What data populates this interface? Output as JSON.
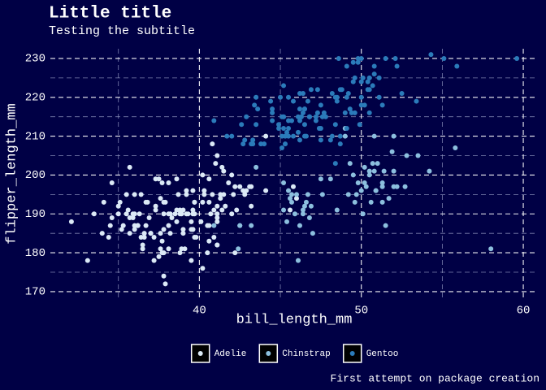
{
  "chart_data": {
    "type": "scatter",
    "title": "Little title",
    "subtitle": "Testing the subtitle",
    "caption": "First attempt on package creation",
    "x_label": "bill_length_mm",
    "y_label": "flipper_length_mm",
    "xlim": [
      30.8,
      60.8
    ],
    "ylim": [
      168.1,
      232.5
    ],
    "xticks": [
      40,
      50,
      60
    ],
    "yticks": [
      170,
      180,
      190,
      200,
      210,
      220,
      230
    ],
    "x_minor_ticks": [
      35,
      45,
      55
    ],
    "y_minor_ticks": [
      175,
      185,
      195,
      205,
      215,
      225
    ],
    "grid": true,
    "legend": "bottom",
    "series": [
      {
        "name": "Adelie",
        "color": "#dbe9f6",
        "x": [
          39.1,
          39.5,
          40.3,
          36.7,
          39.3,
          38.9,
          39.2,
          34.1,
          42.0,
          37.8,
          37.8,
          41.1,
          38.6,
          34.6,
          36.6,
          38.7,
          42.5,
          34.4,
          46.0,
          37.8,
          37.7,
          35.9,
          38.2,
          38.8,
          35.3,
          40.6,
          40.5,
          37.9,
          40.5,
          39.5,
          37.2,
          39.5,
          40.9,
          36.4,
          39.2,
          38.8,
          42.2,
          37.6,
          39.8,
          36.5,
          40.8,
          36.0,
          44.1,
          37.0,
          39.6,
          41.1,
          37.5,
          36.0,
          42.3,
          39.6,
          40.1,
          35.0,
          42.0,
          34.5,
          41.4,
          39.0,
          40.6,
          36.5,
          37.6,
          35.7,
          41.3,
          37.6,
          41.1,
          36.4,
          41.6,
          35.5,
          41.1,
          35.9,
          41.8,
          33.5,
          39.7,
          39.6,
          45.8,
          35.5,
          42.8,
          40.9,
          37.2,
          36.2,
          42.1,
          34.6,
          42.9,
          36.7,
          35.1,
          37.3,
          41.3,
          36.3,
          36.9,
          38.3,
          38.9,
          35.7,
          41.1,
          34.0,
          39.6,
          36.2,
          40.8,
          38.1,
          40.3,
          33.1,
          43.2,
          35.0,
          41.0,
          37.7,
          37.8,
          37.9,
          39.7,
          38.6,
          38.2,
          38.1,
          43.2,
          38.1,
          45.6,
          39.7,
          42.2,
          39.6,
          42.7,
          38.6,
          37.3,
          35.7,
          41.1,
          36.2,
          37.7,
          40.2,
          41.4,
          35.2,
          40.6,
          38.8,
          41.5,
          39.0,
          44.1,
          38.5,
          43.1,
          36.8,
          37.5,
          38.1,
          41.1,
          35.6,
          40.2,
          37.0,
          39.7,
          40.2,
          40.6,
          32.1,
          40.7,
          37.3,
          39.0,
          39.2,
          36.6,
          36.0,
          37.8,
          36.0,
          41.5
        ],
        "values": [
          181,
          186,
          195,
          193,
          190,
          181,
          195,
          193,
          190,
          186,
          180,
          182,
          191,
          198,
          185,
          195,
          197,
          184,
          194,
          174,
          180,
          189,
          185,
          180,
          187,
          183,
          187,
          172,
          180,
          178,
          178,
          188,
          184,
          195,
          196,
          190,
          180,
          181,
          184,
          182,
          195,
          186,
          196,
          185,
          190,
          182,
          179,
          190,
          191,
          186,
          188,
          190,
          200,
          187,
          191,
          186,
          193,
          181,
          194,
          185,
          195,
          185,
          192,
          184,
          192,
          195,
          188,
          190,
          198,
          190,
          190,
          196,
          197,
          190,
          195,
          191,
          184,
          187,
          195,
          189,
          196,
          187,
          193,
          191,
          194,
          190,
          189,
          189,
          190,
          202,
          205,
          185,
          186,
          187,
          208,
          190,
          196,
          178,
          192,
          192,
          203,
          183,
          190,
          193,
          184,
          199,
          190,
          181,
          197,
          198,
          191,
          193,
          197,
          191,
          196,
          188,
          199,
          189,
          189,
          187,
          198,
          176,
          202,
          186,
          199,
          191,
          195,
          191,
          210,
          190,
          197,
          193,
          199,
          187,
          190,
          191,
          200,
          185,
          193,
          193,
          187,
          188,
          190,
          192,
          185,
          190,
          184,
          195,
          193,
          187,
          201
        ]
      },
      {
        "name": "Chinstrap",
        "color": "#8cbfde",
        "x": [
          46.5,
          50.0,
          51.3,
          45.4,
          52.7,
          45.2,
          46.1,
          51.3,
          46.0,
          51.3,
          46.6,
          51.7,
          47.0,
          52.0,
          45.9,
          50.5,
          50.3,
          58.0,
          46.4,
          49.2,
          42.4,
          48.5,
          43.2,
          50.6,
          46.7,
          52.0,
          50.5,
          49.5,
          46.4,
          52.8,
          40.9,
          54.2,
          42.5,
          51.0,
          49.7,
          47.5,
          47.6,
          52.0,
          46.9,
          53.5,
          49.0,
          46.2,
          50.9,
          45.5,
          50.9,
          50.8,
          50.1,
          49.0,
          51.5,
          49.8,
          48.1,
          51.4,
          45.7,
          50.7,
          42.5,
          52.2,
          45.2,
          49.3,
          50.2,
          45.6,
          51.9,
          46.8,
          45.7,
          55.8,
          43.5,
          49.6,
          50.8,
          50.2
        ],
        "values": [
          192,
          196,
          193,
          188,
          197,
          198,
          178,
          197,
          195,
          198,
          193,
          194,
          185,
          201,
          190,
          201,
          197,
          181,
          190,
          195,
          181,
          191,
          187,
          193,
          195,
          197,
          200,
          200,
          191,
          205,
          187,
          201,
          187,
          203,
          195,
          199,
          195,
          210,
          192,
          205,
          210,
          187,
          196,
          196,
          196,
          201,
          190,
          212,
          187,
          198,
          199,
          201,
          193,
          203,
          187,
          197,
          191,
          203,
          202,
          194,
          206,
          189,
          195,
          207,
          202,
          193,
          210,
          198
        ]
      },
      {
        "name": "Gentoo",
        "color": "#2b7bba",
        "x": [
          46.1,
          50.0,
          48.7,
          50.0,
          47.6,
          46.5,
          45.4,
          46.7,
          43.3,
          46.8,
          40.9,
          49.0,
          45.5,
          48.4,
          45.8,
          49.3,
          42.0,
          49.2,
          46.2,
          48.7,
          50.2,
          45.1,
          46.5,
          46.3,
          42.9,
          46.1,
          44.5,
          47.8,
          48.2,
          50.0,
          47.3,
          42.8,
          45.1,
          59.6,
          49.1,
          48.4,
          42.6,
          44.4,
          44.0,
          48.7,
          42.7,
          49.6,
          45.3,
          49.6,
          50.5,
          43.6,
          45.5,
          50.5,
          44.9,
          45.2,
          46.6,
          48.5,
          45.1,
          50.1,
          46.5,
          45.0,
          43.8,
          45.5,
          43.2,
          50.4,
          45.3,
          46.2,
          45.7,
          54.3,
          45.8,
          49.8,
          46.2,
          49.5,
          43.5,
          50.7,
          47.7,
          46.4,
          48.2,
          46.5,
          46.4,
          48.6,
          47.5,
          51.1,
          45.2,
          45.2,
          49.1,
          52.5,
          47.4,
          50.0,
          44.9,
          50.8,
          43.4,
          51.3,
          47.5,
          52.1,
          47.5,
          52.2,
          45.5,
          49.5,
          44.5,
          50.8,
          49.4,
          46.9,
          48.4,
          51.1,
          48.5,
          55.9,
          47.2,
          49.1,
          47.3,
          46.8,
          41.7,
          53.4,
          43.3,
          48.1,
          50.5,
          49.8,
          43.5,
          51.5,
          46.2,
          55.1,
          44.5,
          48.8,
          47.2,
          46.8,
          50.4,
          45.2,
          49.9
        ],
        "values": [
          211,
          230,
          210,
          218,
          215,
          210,
          211,
          219,
          209,
          215,
          214,
          216,
          214,
          213,
          210,
          217,
          210,
          221,
          209,
          222,
          218,
          215,
          213,
          215,
          215,
          215,
          216,
          215,
          210,
          220,
          222,
          209,
          207,
          230,
          220,
          220,
          213,
          219,
          208,
          208,
          208,
          225,
          210,
          216,
          222,
          217,
          210,
          225,
          213,
          215,
          210,
          220,
          210,
          225,
          217,
          220,
          208,
          220,
          208,
          224,
          208,
          221,
          214,
          231,
          219,
          230,
          214,
          229,
          220,
          223,
          216,
          221,
          221,
          217,
          216,
          230,
          209,
          220,
          215,
          223,
          212,
          221,
          212,
          224,
          212,
          228,
          218,
          218,
          212,
          230,
          218,
          228,
          212,
          224,
          214,
          226,
          216,
          222,
          203,
          225,
          219,
          228,
          215,
          228,
          216,
          215,
          210,
          219,
          208,
          209,
          216,
          229,
          213,
          230,
          217,
          230,
          217,
          222,
          214,
          215,
          222,
          212,
          213
        ]
      }
    ]
  }
}
